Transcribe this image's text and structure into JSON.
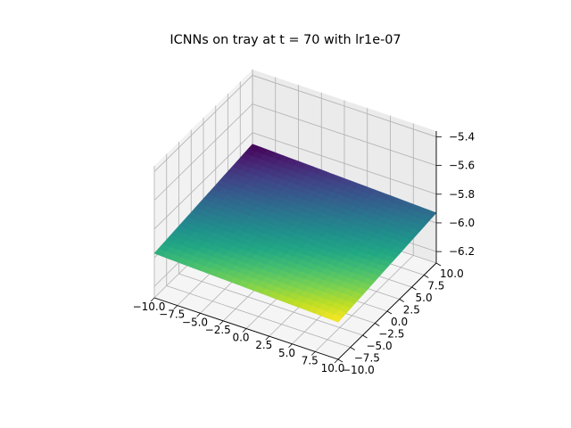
{
  "chart_data": {
    "type": "surface3d",
    "title": "ICNNs on tray at t = 70 with lr1e-07",
    "xlabel": "",
    "ylabel": "",
    "zlabel": "",
    "colormap": "viridis",
    "grid": true,
    "xlim": [
      -10,
      10
    ],
    "ylim": [
      -10,
      10
    ],
    "zlim": [
      -6.28,
      -5.36
    ],
    "x_ticks": [
      "−10.0",
      "−7.5",
      "−5.0",
      "−2.5",
      "0.0",
      "2.5",
      "5.0",
      "7.5",
      "10.0"
    ],
    "y_ticks": [
      "−10.0",
      "−7.5",
      "−5.0",
      "−2.5",
      "0.0",
      "2.5",
      "5.0",
      "7.5",
      "10.0"
    ],
    "z_ticks": [
      "−6.2",
      "−6.0",
      "−5.8",
      "−5.6",
      "−5.4"
    ],
    "x_tick_values": [
      -10,
      -7.5,
      -5,
      -2.5,
      0,
      2.5,
      5,
      7.5,
      10
    ],
    "y_tick_values": [
      -10,
      -7.5,
      -5,
      -2.5,
      0,
      2.5,
      5,
      7.5,
      10
    ],
    "z_tick_values": [
      -6.2,
      -6.0,
      -5.8,
      -5.6,
      -5.4
    ],
    "surface_corners": [
      {
        "x": -10,
        "y": -10,
        "z": -5.97
      },
      {
        "x": 10,
        "y": -10,
        "z": -6.02
      },
      {
        "x": -10,
        "y": 10,
        "z": -5.88
      },
      {
        "x": 10,
        "y": 10,
        "z": -5.93
      }
    ]
  }
}
